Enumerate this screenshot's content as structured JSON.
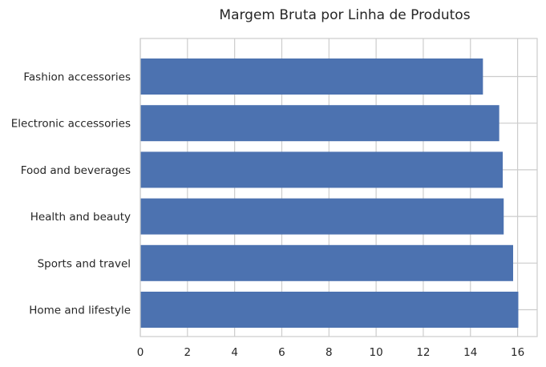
{
  "chart_data": {
    "type": "bar",
    "orientation": "horizontal",
    "title": "Margem Bruta por Linha de Produtos",
    "xlabel": "",
    "ylabel": "",
    "categories": [
      "Home and lifestyle",
      "Sports and travel",
      "Health and beauty",
      "Food and beverages",
      "Electronic accessories",
      "Fashion accessories"
    ],
    "values": [
      16.03,
      15.81,
      15.41,
      15.37,
      15.22,
      14.53
    ],
    "xlim": [
      0,
      16.83
    ],
    "xticks": [
      "0",
      "2",
      "4",
      "6",
      "8",
      "10",
      "12",
      "14",
      "16"
    ],
    "grid": true,
    "bar_color": "#4c72b0"
  }
}
